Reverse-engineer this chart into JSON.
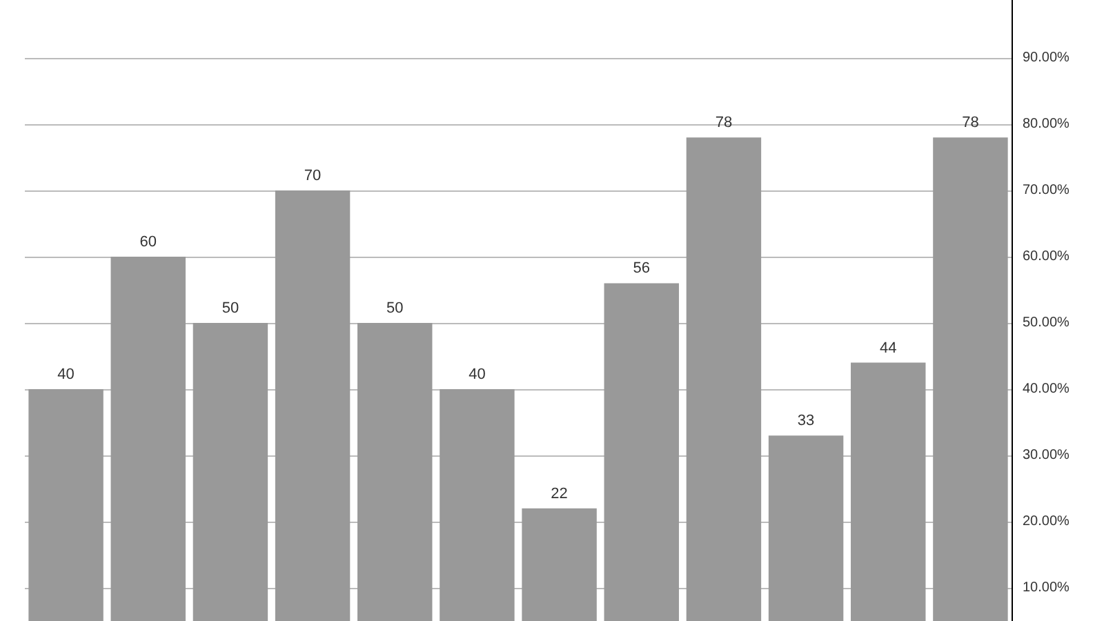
{
  "chart_data": {
    "type": "bar",
    "categories": [
      null,
      null,
      null,
      null,
      null,
      null,
      null,
      null,
      null,
      null,
      null,
      null
    ],
    "values": [
      40,
      60,
      50,
      70,
      50,
      40,
      22,
      56,
      78,
      33,
      44,
      78
    ],
    "color": "#999999",
    "ylim": [
      5,
      98.75
    ],
    "yticks": [
      {
        "value": 10,
        "label": "10.00%"
      },
      {
        "value": 20,
        "label": "20.00%"
      },
      {
        "value": 30,
        "label": "30.00%"
      },
      {
        "value": 40,
        "label": "40.00%"
      },
      {
        "value": 50,
        "label": "50.00%"
      },
      {
        "value": 60,
        "label": "60.00%"
      },
      {
        "value": 70,
        "label": "70.00%"
      },
      {
        "value": 80,
        "label": "80.00%"
      },
      {
        "value": 90,
        "label": "90.00%"
      }
    ],
    "grid": "y",
    "data_labels": true,
    "tick_labels": "y"
  }
}
